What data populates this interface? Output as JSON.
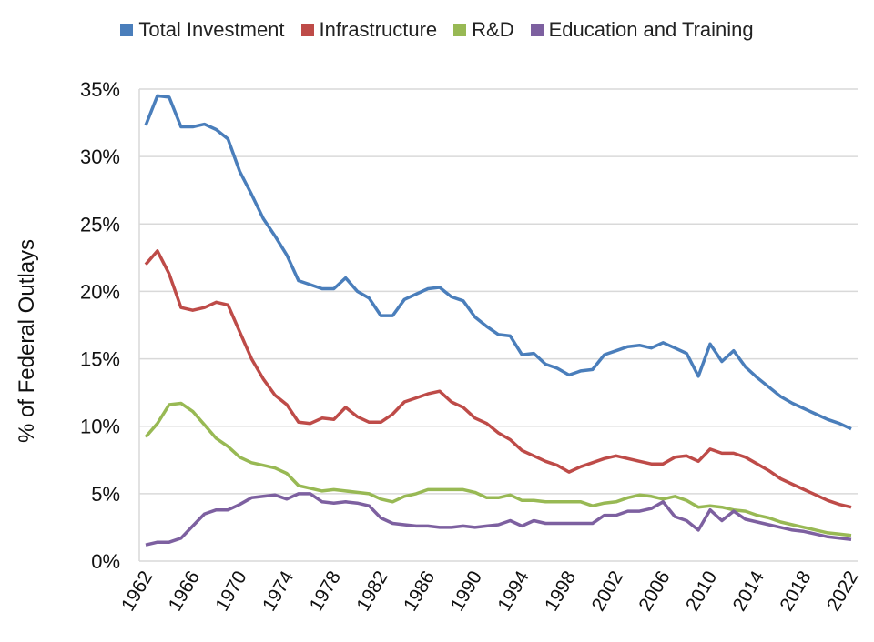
{
  "chart_data": {
    "type": "line",
    "title": "",
    "xlabel": "",
    "ylabel": "% of Federal Outlays",
    "ylim": [
      0,
      35
    ],
    "yticks": [
      "0%",
      "5%",
      "10%",
      "15%",
      "20%",
      "25%",
      "30%",
      "35%"
    ],
    "xticks": [
      "1962",
      "1966",
      "1970",
      "1974",
      "1978",
      "1982",
      "1986",
      "1990",
      "1994",
      "1998",
      "2002",
      "2006",
      "2010",
      "2014",
      "2018",
      "2022"
    ],
    "grid": true,
    "legend": "top",
    "x": [
      1962,
      1963,
      1964,
      1965,
      1966,
      1967,
      1968,
      1969,
      1970,
      1971,
      1972,
      1973,
      1974,
      1975,
      1976,
      1977,
      1978,
      1979,
      1980,
      1981,
      1982,
      1983,
      1984,
      1985,
      1986,
      1987,
      1988,
      1989,
      1990,
      1991,
      1992,
      1993,
      1994,
      1995,
      1996,
      1997,
      1998,
      1999,
      2000,
      2001,
      2002,
      2003,
      2004,
      2005,
      2006,
      2007,
      2008,
      2009,
      2010,
      2011,
      2012,
      2013,
      2014,
      2015,
      2016,
      2017,
      2018,
      2019,
      2020,
      2021,
      2022
    ],
    "series": [
      {
        "name": "Total Investment",
        "color": "#4a7ebb",
        "values": [
          32.3,
          34.5,
          34.4,
          32.2,
          32.2,
          32.4,
          32.0,
          31.3,
          28.9,
          27.2,
          25.4,
          24.1,
          22.7,
          20.8,
          20.5,
          20.2,
          20.2,
          21.0,
          20.0,
          19.5,
          18.2,
          18.2,
          19.4,
          19.8,
          20.2,
          20.3,
          19.6,
          19.3,
          18.1,
          17.4,
          16.8,
          16.7,
          15.3,
          15.4,
          14.6,
          14.3,
          13.8,
          14.1,
          14.2,
          15.3,
          15.6,
          15.9,
          16.0,
          15.8,
          16.2,
          15.8,
          15.4,
          13.7,
          16.1,
          14.8,
          15.6,
          14.4,
          13.6,
          12.9,
          12.2,
          11.7,
          11.3,
          10.9,
          10.5,
          10.2,
          9.8
        ]
      },
      {
        "name": "Infrastructure",
        "color": "#be4b48",
        "values": [
          22.0,
          23.0,
          21.3,
          18.8,
          18.6,
          18.8,
          19.2,
          19.0,
          17.0,
          15.0,
          13.5,
          12.3,
          11.6,
          10.3,
          10.2,
          10.6,
          10.5,
          11.4,
          10.7,
          10.3,
          10.3,
          10.9,
          11.8,
          12.1,
          12.4,
          12.6,
          11.8,
          11.4,
          10.6,
          10.2,
          9.5,
          9.0,
          8.2,
          7.8,
          7.4,
          7.1,
          6.6,
          7.0,
          7.3,
          7.6,
          7.8,
          7.6,
          7.4,
          7.2,
          7.2,
          7.7,
          7.8,
          7.4,
          8.3,
          8.0,
          8.0,
          7.7,
          7.2,
          6.7,
          6.1,
          5.7,
          5.3,
          4.9,
          4.5,
          4.2,
          4.0
        ]
      },
      {
        "name": "R&D",
        "color": "#98b954",
        "values": [
          9.2,
          10.2,
          11.6,
          11.7,
          11.1,
          10.1,
          9.1,
          8.5,
          7.7,
          7.3,
          7.1,
          6.9,
          6.5,
          5.6,
          5.4,
          5.2,
          5.3,
          5.2,
          5.1,
          5.0,
          4.6,
          4.4,
          4.8,
          5.0,
          5.3,
          5.3,
          5.3,
          5.3,
          5.1,
          4.7,
          4.7,
          4.9,
          4.5,
          4.5,
          4.4,
          4.4,
          4.4,
          4.4,
          4.1,
          4.3,
          4.4,
          4.7,
          4.9,
          4.8,
          4.6,
          4.8,
          4.5,
          4.0,
          4.1,
          4.0,
          3.8,
          3.7,
          3.4,
          3.2,
          2.9,
          2.7,
          2.5,
          2.3,
          2.1,
          2.0,
          1.9
        ]
      },
      {
        "name": "Education and Training",
        "color": "#7d60a0",
        "values": [
          1.2,
          1.4,
          1.4,
          1.7,
          2.6,
          3.5,
          3.8,
          3.8,
          4.2,
          4.7,
          4.8,
          4.9,
          4.6,
          5.0,
          5.0,
          4.4,
          4.3,
          4.4,
          4.3,
          4.1,
          3.2,
          2.8,
          2.7,
          2.6,
          2.6,
          2.5,
          2.5,
          2.6,
          2.5,
          2.6,
          2.7,
          3.0,
          2.6,
          3.0,
          2.8,
          2.8,
          2.8,
          2.8,
          2.8,
          3.4,
          3.4,
          3.7,
          3.7,
          3.9,
          4.4,
          3.3,
          3.0,
          2.3,
          3.8,
          3.0,
          3.7,
          3.1,
          2.9,
          2.7,
          2.5,
          2.3,
          2.2,
          2.0,
          1.8,
          1.7,
          1.6
        ]
      }
    ]
  }
}
